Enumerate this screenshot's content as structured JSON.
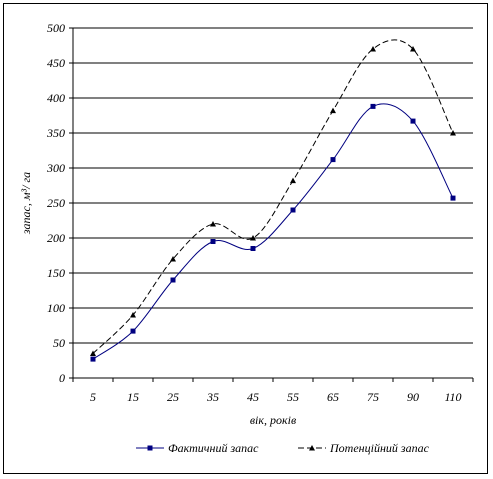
{
  "chart_data": {
    "type": "line",
    "categories": [
      "5",
      "15",
      "25",
      "35",
      "45",
      "55",
      "65",
      "75",
      "90",
      "110"
    ],
    "series": [
      {
        "name": "Фактичний запас",
        "values": [
          27,
          67,
          140,
          195,
          185,
          240,
          312,
          388,
          367,
          257
        ],
        "color": "#000080",
        "marker": "square",
        "dash": "solid"
      },
      {
        "name": "Потенційний запас",
        "values": [
          35,
          90,
          170,
          220,
          200,
          282,
          382,
          470,
          470,
          350
        ],
        "color": "#000000",
        "marker": "triangle",
        "dash": "dashed"
      }
    ],
    "xlabel": "вік, років",
    "ylabel": "запас, м³/ га",
    "ylim": [
      0,
      500
    ],
    "yticks": [
      0,
      50,
      100,
      150,
      200,
      250,
      300,
      350,
      400,
      450,
      500
    ],
    "grid": "horizontal",
    "legend": "bottom"
  }
}
